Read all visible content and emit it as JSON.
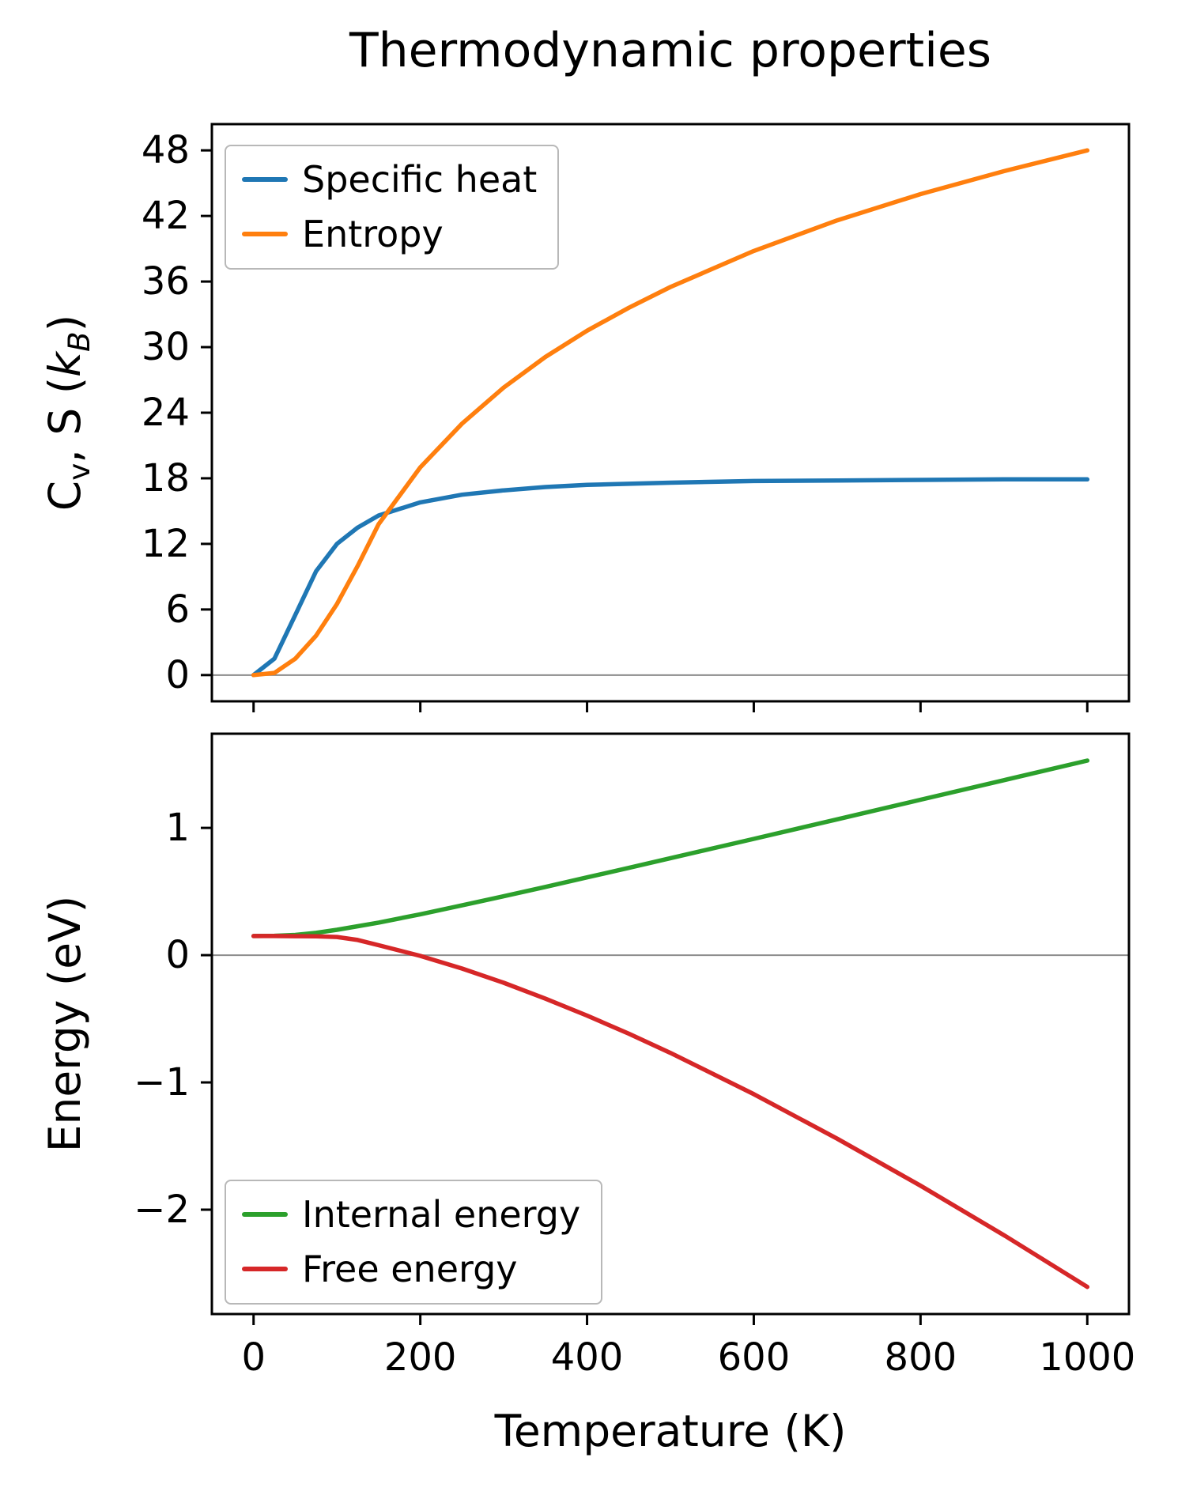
{
  "chart_data": [
    {
      "type": "line",
      "title": "Thermodynamic properties",
      "xlabel": "",
      "ylabel": "Cv, S (kB)",
      "ylabel_segments": [
        {
          "t": "C",
          "style": ""
        },
        {
          "t": "v",
          "style": "sub"
        },
        {
          "t": ", S (",
          "style": ""
        },
        {
          "t": "k",
          "style": "italic"
        },
        {
          "t": "B",
          "style": "sub-italic"
        },
        {
          "t": ")",
          "style": ""
        }
      ],
      "x": [
        0,
        25,
        50,
        75,
        100,
        125,
        150,
        200,
        250,
        300,
        350,
        400,
        450,
        500,
        600,
        700,
        800,
        900,
        1000
      ],
      "series": [
        {
          "name": "Specific heat",
          "color": "#1f77b4",
          "values": [
            0,
            1.5,
            5.5,
            9.5,
            12.0,
            13.5,
            14.6,
            15.8,
            16.5,
            16.9,
            17.2,
            17.4,
            17.5,
            17.6,
            17.75,
            17.8,
            17.85,
            17.9,
            17.9
          ]
        },
        {
          "name": "Entropy",
          "color": "#ff7f0e",
          "values": [
            0,
            0.2,
            1.5,
            3.6,
            6.5,
            10.0,
            13.8,
            19.0,
            23.0,
            26.3,
            29.1,
            31.5,
            33.6,
            35.5,
            38.8,
            41.6,
            44.0,
            46.1,
            48.0
          ]
        }
      ],
      "xlim": [
        -50,
        1050
      ],
      "ylim": [
        -2.4,
        50.4
      ],
      "xticks": [
        0,
        200,
        400,
        600,
        800,
        1000
      ],
      "show_xtick_labels": false,
      "yticks": [
        0,
        6,
        12,
        18,
        24,
        30,
        36,
        42,
        48
      ],
      "zero_line": true,
      "grid": false,
      "legend_position": "upper-left"
    },
    {
      "type": "line",
      "title": "",
      "xlabel": "Temperature (K)",
      "ylabel": "Energy (eV)",
      "x": [
        0,
        25,
        50,
        75,
        100,
        125,
        150,
        200,
        250,
        300,
        350,
        400,
        450,
        500,
        600,
        700,
        800,
        900,
        1000
      ],
      "series": [
        {
          "name": "Internal energy",
          "color": "#2ca02c",
          "values": [
            0.15,
            0.152,
            0.159,
            0.175,
            0.199,
            0.227,
            0.256,
            0.321,
            0.391,
            0.463,
            0.536,
            0.611,
            0.686,
            0.762,
            0.914,
            1.067,
            1.221,
            1.375,
            1.529
          ]
        },
        {
          "name": "Free energy",
          "color": "#d62728",
          "values": [
            0.15,
            0.15,
            0.149,
            0.148,
            0.143,
            0.119,
            0.078,
            -0.006,
            -0.105,
            -0.217,
            -0.342,
            -0.475,
            -0.617,
            -0.768,
            -1.092,
            -1.442,
            -1.812,
            -2.2,
            -2.607
          ]
        }
      ],
      "xlim": [
        -50,
        1050
      ],
      "ylim": [
        -2.82,
        1.74
      ],
      "xticks": [
        0,
        200,
        400,
        600,
        800,
        1000
      ],
      "show_xtick_labels": true,
      "yticks": [
        -2,
        -1,
        0,
        1
      ],
      "zero_line": true,
      "grid": false,
      "legend_position": "lower-left"
    }
  ],
  "styles": {
    "axis_color": "#000000",
    "tick_label_color": "#000000",
    "zero_line_color": "#8c8c8c",
    "background": "#ffffff"
  }
}
